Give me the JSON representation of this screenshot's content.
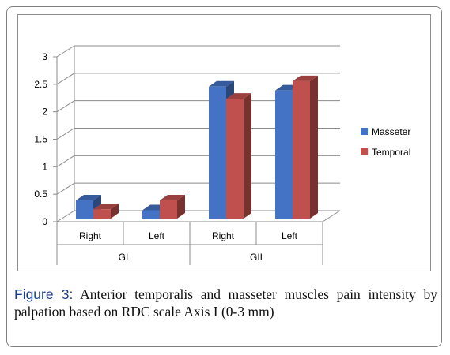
{
  "caption": {
    "label": "Figure 3:",
    "text": "Anterior temporalis and masseter muscles pain intensity by palpation based on RDC scale Axis I (0-3 mm)"
  },
  "chart_data": {
    "type": "bar",
    "style": "3d-clustered-column",
    "title": "",
    "xlabel": "",
    "ylabel": "",
    "ylim": [
      0,
      3
    ],
    "yticks": [
      "0",
      "0.5",
      "1",
      "1.5",
      "2",
      "2.5",
      "3"
    ],
    "grid": true,
    "legend_position": "right",
    "categories": [
      {
        "label": "Right",
        "group": "GI"
      },
      {
        "label": "Left",
        "group": "GI"
      },
      {
        "label": "Right",
        "group": "GII"
      },
      {
        "label": "Left",
        "group": "GII"
      }
    ],
    "groups": [
      "GI",
      "GII"
    ],
    "series": [
      {
        "name": "Masseter",
        "values": [
          0.33,
          0.15,
          2.4,
          2.33
        ],
        "color": "#4472c4"
      },
      {
        "name": "Temporal",
        "values": [
          0.17,
          0.33,
          2.18,
          2.5
        ],
        "color": "#c0504d"
      }
    ]
  }
}
